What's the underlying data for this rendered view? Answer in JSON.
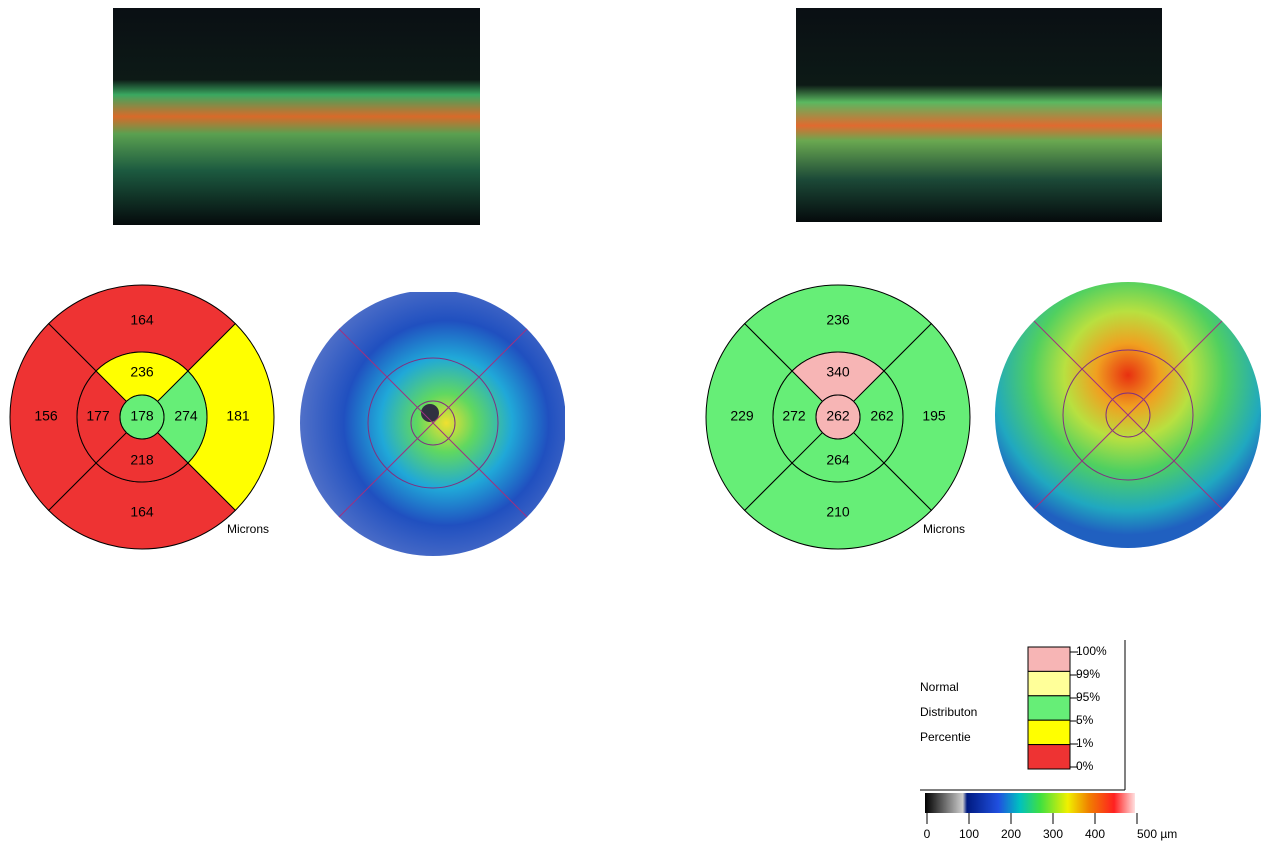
{
  "panels": [
    {
      "grid": {
        "center": {
          "value": "178",
          "color": "#66ee77"
        },
        "inner": [
          {
            "value": "236",
            "color": "#ffff00"
          },
          {
            "value": "274",
            "color": "#66ee77"
          },
          {
            "value": "218",
            "color": "#ee3333"
          },
          {
            "value": "177",
            "color": "#ee3333"
          }
        ],
        "outer": [
          {
            "value": "164",
            "color": "#ee3333"
          },
          {
            "value": "181",
            "color": "#ffff00"
          },
          {
            "value": "164",
            "color": "#ee3333"
          },
          {
            "value": "156",
            "color": "#ee3333"
          }
        ]
      },
      "unit_label": "Microns"
    },
    {
      "grid": {
        "center": {
          "value": "262",
          "color": "#f7b5b5"
        },
        "inner": [
          {
            "value": "340",
            "color": "#f7b5b5"
          },
          {
            "value": "262",
            "color": "#66ee77"
          },
          {
            "value": "264",
            "color": "#66ee77"
          },
          {
            "value": "272",
            "color": "#66ee77"
          }
        ],
        "outer": [
          {
            "value": "236",
            "color": "#66ee77"
          },
          {
            "value": "195",
            "color": "#66ee77"
          },
          {
            "value": "210",
            "color": "#66ee77"
          },
          {
            "value": "229",
            "color": "#66ee77"
          }
        ]
      },
      "unit_label": "Microns"
    }
  ],
  "legend": {
    "title_lines": [
      "Normal",
      "Distributon",
      "Percentie"
    ],
    "swatches": [
      "#f7b5b5",
      "#ffff99",
      "#66ee77",
      "#ffff00",
      "#ee3333"
    ],
    "percent_labels": [
      "100%",
      "99%",
      "95%",
      "5%",
      "1%",
      "0%"
    ],
    "scale_labels": [
      "0",
      "100",
      "200",
      "300",
      "400",
      "500 µm"
    ]
  }
}
